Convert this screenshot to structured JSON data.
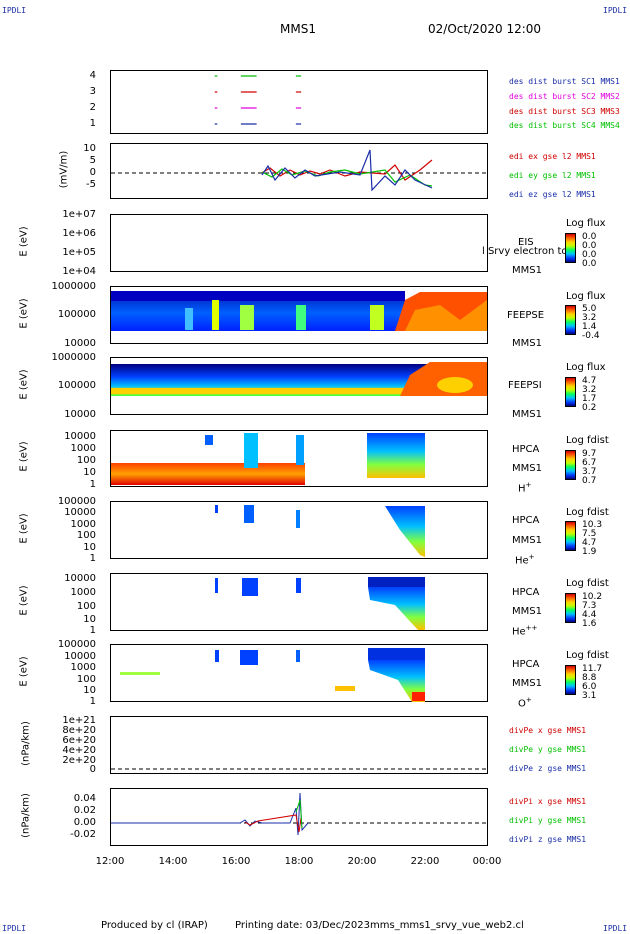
{
  "corners": {
    "tl": "IPDLI",
    "tr": "IPDLI",
    "bl": "IPDLI",
    "br": "IPDLI"
  },
  "header": {
    "spacecraft": "MMS1",
    "datetime": "02/Oct/2020 12:00"
  },
  "xaxis": {
    "ticks": [
      "12:00",
      "14:00",
      "16:00",
      "18:00",
      "20:00",
      "22:00",
      "00:00"
    ]
  },
  "footer": {
    "produced": "Produced by cl (IRAP)",
    "printing": "Printing date: 03/Dec/2023",
    "file": "mms_mms1_srvy_vue_web2.cl"
  },
  "panels": {
    "burst": {
      "yticks": [
        "4",
        "3",
        "2",
        "1"
      ],
      "legend": [
        "des dist burst SC1 MMS1",
        "des dist burst SC2 MMS2",
        "des dist burst SC3 MMS3",
        "des dist burst SC4 MMS4"
      ],
      "colors": [
        "#1a2ea8",
        "#e000e0",
        "#d00000",
        "#00c000"
      ]
    },
    "edi": {
      "ylabel": "(mV/m)",
      "yticks": [
        "10",
        "5",
        "0",
        "-5"
      ],
      "legend": [
        "edi ex gse l2 MMS1",
        "edi ey gse l2 MMS1",
        "edi ez gse l2 MMS1"
      ],
      "colors": [
        "#d00000",
        "#00c000",
        "#1a2ea8"
      ]
    },
    "eis": {
      "ylabel": "E (eV)",
      "yticks": [
        "1e+07",
        "1e+06",
        "1e+05",
        "1e+04"
      ],
      "name": "EIS",
      "name2": "MMS1",
      "overlay": "l Srvy electron to",
      "cbtitle": "Log flux",
      "cbticks": [
        "0.0",
        "0.0",
        "0.0",
        "0.0"
      ]
    },
    "feepse": {
      "ylabel": "E (eV)",
      "yticks": [
        "1000000",
        "100000",
        "10000"
      ],
      "name": "FEEPSE",
      "name2": "MMS1",
      "cbtitle": "Log flux",
      "cbticks": [
        "5.0",
        "3.2",
        "1.4",
        "-0.4"
      ]
    },
    "feepsi": {
      "ylabel": "E (eV)",
      "yticks": [
        "1000000",
        "100000",
        "10000"
      ],
      "name": "FEEPSI",
      "name2": "MMS1",
      "cbtitle": "Log flux",
      "cbticks": [
        "4.7",
        "3.2",
        "1.7",
        "0.2"
      ]
    },
    "hpcah": {
      "ylabel": "E (eV)",
      "yticks": [
        "10000",
        "1000",
        "100",
        "10",
        "1"
      ],
      "name": "HPCA",
      "name2": "MMS1",
      "species": "H",
      "charge": "+",
      "cbtitle": "Log fdist",
      "cbticks": [
        "9.7",
        "6.7",
        "3.7",
        "0.7"
      ]
    },
    "hpcahe": {
      "ylabel": "E (eV)",
      "yticks": [
        "100000",
        "10000",
        "1000",
        "100",
        "10",
        "1"
      ],
      "name": "HPCA",
      "name2": "MMS1",
      "species": "He",
      "charge": "+",
      "cbtitle": "Log fdist",
      "cbticks": [
        "10.3",
        "7.5",
        "4.7",
        "1.9"
      ]
    },
    "hpcahe2": {
      "ylabel": "E (eV)",
      "yticks": [
        "10000",
        "1000",
        "100",
        "10",
        "1"
      ],
      "name": "HPCA",
      "name2": "MMS1",
      "species": "He",
      "charge": "++",
      "cbtitle": "Log fdist",
      "cbticks": [
        "10.2",
        "7.3",
        "4.4",
        "1.6"
      ]
    },
    "hpcao": {
      "ylabel": "E (eV)",
      "yticks": [
        "100000",
        "10000",
        "1000",
        "100",
        "10",
        "1"
      ],
      "name": "HPCA",
      "name2": "MMS1",
      "species": "O",
      "charge": "+",
      "cbtitle": "Log fdist",
      "cbticks": [
        "11.7",
        "8.8",
        "6.0",
        "3.1"
      ]
    },
    "divpe": {
      "ylabel": "(nPa/km)",
      "yticks": [
        "1e+21",
        "8e+20",
        "6e+20",
        "4e+20",
        "2e+20",
        "0"
      ],
      "legend": [
        "divPe x gse MMS1",
        "divPe y gse MMS1",
        "divPe z gse MMS1"
      ],
      "colors": [
        "#d00000",
        "#00c000",
        "#1a2ea8"
      ]
    },
    "divpi": {
      "ylabel": "(nPa/km)",
      "yticks": [
        "0.04",
        "0.02",
        "0.00",
        "-0.02"
      ],
      "legend": [
        "divPi x gse MMS1",
        "divPi y gse MMS1",
        "divPi z gse MMS1"
      ],
      "colors": [
        "#d00000",
        "#00c000",
        "#1a2ea8"
      ]
    }
  },
  "chart_data": {
    "type": "line",
    "x_range": [
      "12:00",
      "00:00"
    ],
    "burst_intervals": {
      "MMS1": [
        [
          "15:20",
          "15:25"
        ],
        [
          "16:10",
          "16:40"
        ],
        [
          "17:55",
          "18:05"
        ]
      ],
      "MMS2": [
        [
          "15:20",
          "15:25"
        ],
        [
          "16:10",
          "16:40"
        ],
        [
          "17:55",
          "18:05"
        ]
      ],
      "MMS3": [
        [
          "15:20",
          "15:25"
        ],
        [
          "16:10",
          "16:40"
        ],
        [
          "17:55",
          "18:05"
        ]
      ],
      "MMS4": [
        [
          "15:20",
          "15:25"
        ],
        [
          "16:10",
          "16:40"
        ],
        [
          "17:55",
          "18:05"
        ]
      ]
    },
    "edi_ylim": [
      -8,
      10
    ],
    "divpe_ylim": [
      0,
      1e+21
    ],
    "divpi_ylim": [
      -0.03,
      0.05
    ]
  }
}
